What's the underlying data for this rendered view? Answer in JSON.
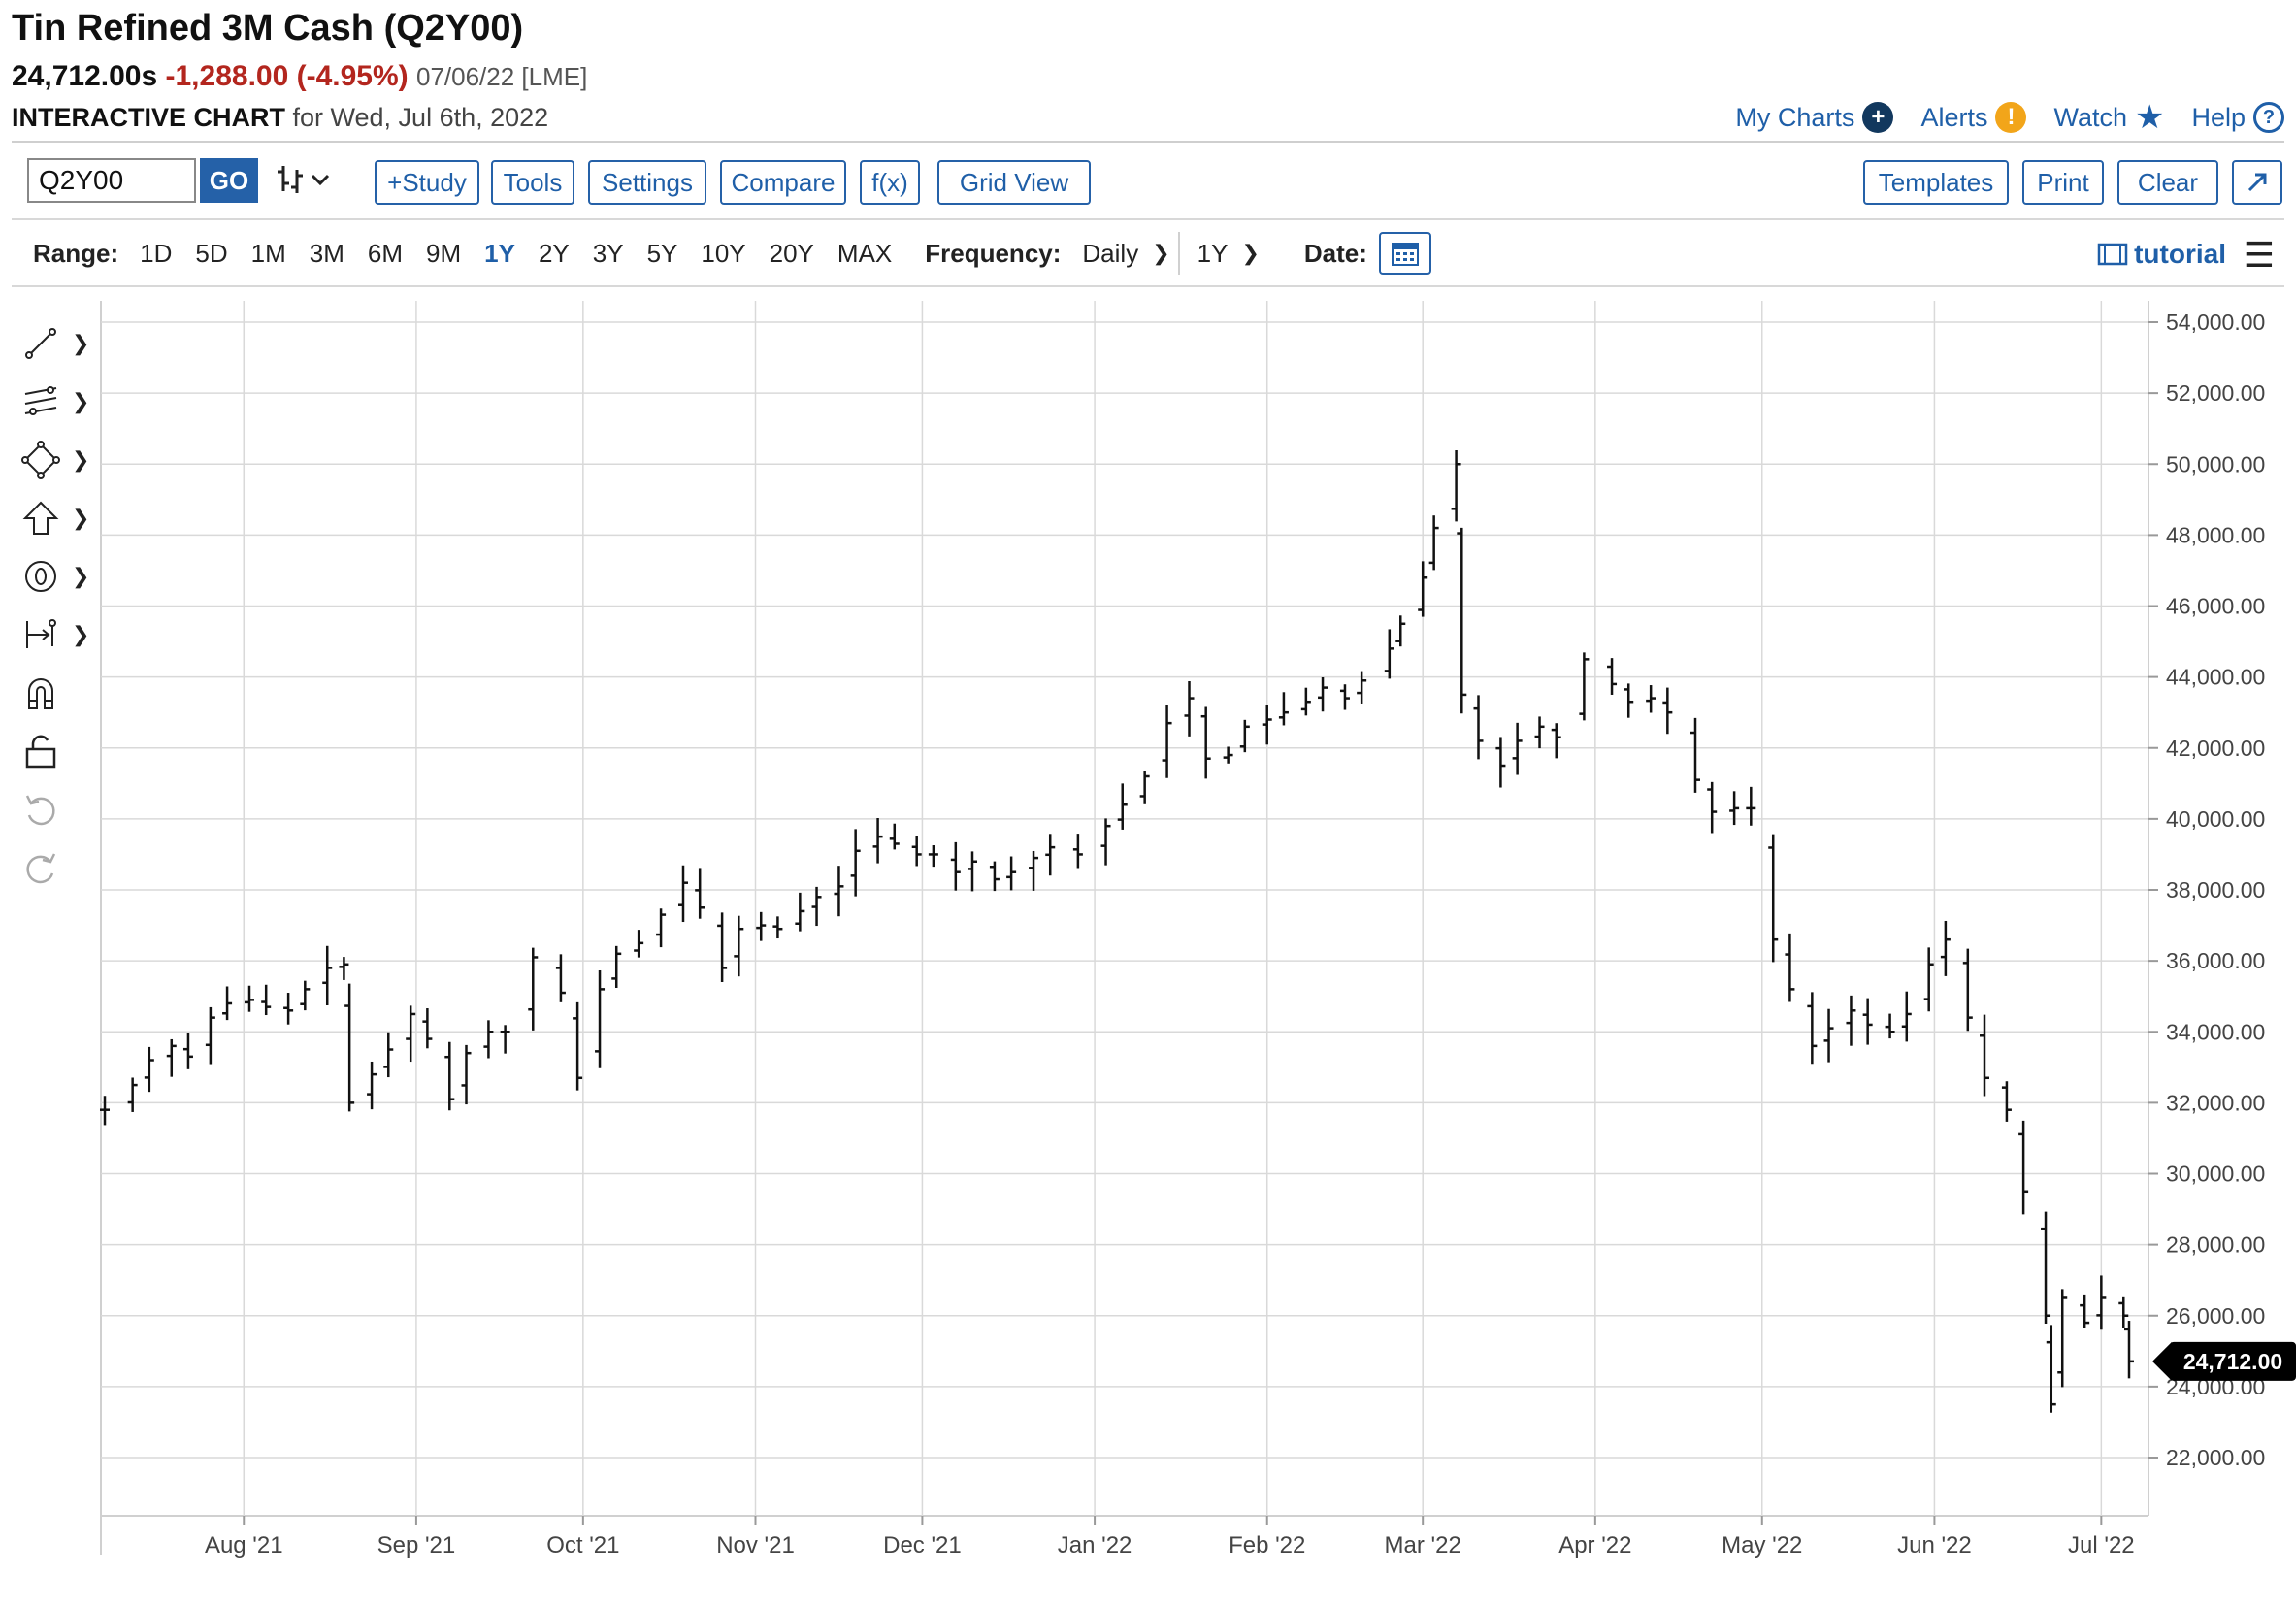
{
  "header": {
    "title": "Tin Refined 3M Cash (Q2Y00)",
    "price": "24,712.00s",
    "change": "-1,288.00 (-4.95%)",
    "date_exchange": "07/06/22 [LME]",
    "chart_label": "INTERACTIVE CHART",
    "chart_for": "for Wed, Jul 6th, 2022"
  },
  "links": {
    "my_charts": "My Charts",
    "alerts": "Alerts",
    "watch": "Watch",
    "help": "Help"
  },
  "toolbar": {
    "symbol_value": "Q2Y00",
    "go": "GO",
    "study": "+Study",
    "tools": "Tools",
    "settings": "Settings",
    "compare": "Compare",
    "fx": "f(x)",
    "grid_view": "Grid View",
    "templates": "Templates",
    "print": "Print",
    "clear": "Clear",
    "expand_icon": "expand-icon"
  },
  "range": {
    "label": "Range:",
    "options": [
      "1D",
      "5D",
      "1M",
      "3M",
      "6M",
      "9M",
      "1Y",
      "2Y",
      "3Y",
      "5Y",
      "10Y",
      "20Y",
      "MAX"
    ],
    "active": "1Y",
    "frequency_label": "Frequency:",
    "frequency_value": "Daily",
    "period_value": "1Y",
    "date_label": "Date:",
    "tutorial": "tutorial"
  },
  "chart_data": {
    "type": "ohlc",
    "title": "Tin Refined 3M Cash (Q2Y00)",
    "ylim": [
      21000,
      54500
    ],
    "yticks": [
      "54,000.00",
      "52,000.00",
      "50,000.00",
      "48,000.00",
      "46,000.00",
      "44,000.00",
      "42,000.00",
      "40,000.00",
      "38,000.00",
      "36,000.00",
      "34,000.00",
      "32,000.00",
      "30,000.00",
      "28,000.00",
      "26,000.00",
      "24,000.00",
      "22,000.00"
    ],
    "x_labels": [
      "Aug '21",
      "Sep '21",
      "Oct '21",
      "Nov '21",
      "Dec '21",
      "Jan '22",
      "Feb '22",
      "Mar '22",
      "Apr '22",
      "May '22",
      "Jun '22",
      "Jul '22"
    ],
    "x_range": [
      "2021-07-07",
      "2022-07-06"
    ],
    "last_value": 24712,
    "last_label": "24,712.00",
    "points": [
      [
        "2021-07-07",
        31800
      ],
      [
        "2021-07-12",
        32500
      ],
      [
        "2021-07-15",
        33200
      ],
      [
        "2021-07-19",
        33600
      ],
      [
        "2021-07-22",
        33300
      ],
      [
        "2021-07-26",
        34400
      ],
      [
        "2021-07-29",
        34800
      ],
      [
        "2021-08-02",
        34900
      ],
      [
        "2021-08-05",
        34700
      ],
      [
        "2021-08-09",
        34600
      ],
      [
        "2021-08-12",
        35200
      ],
      [
        "2021-08-16",
        35800
      ],
      [
        "2021-08-19",
        35900
      ],
      [
        "2021-08-20",
        32000
      ],
      [
        "2021-08-24",
        32800
      ],
      [
        "2021-08-27",
        33500
      ],
      [
        "2021-08-31",
        34500
      ],
      [
        "2021-09-03",
        33800
      ],
      [
        "2021-09-07",
        32100
      ],
      [
        "2021-09-10",
        33400
      ],
      [
        "2021-09-14",
        34000
      ],
      [
        "2021-09-17",
        34000
      ],
      [
        "2021-09-22",
        36100
      ],
      [
        "2021-09-27",
        35100
      ],
      [
        "2021-09-30",
        32700
      ],
      [
        "2021-10-04",
        35200
      ],
      [
        "2021-10-07",
        36200
      ],
      [
        "2021-10-11",
        36500
      ],
      [
        "2021-10-15",
        37300
      ],
      [
        "2021-10-19",
        38200
      ],
      [
        "2021-10-22",
        37500
      ],
      [
        "2021-10-26",
        35800
      ],
      [
        "2021-10-29",
        36900
      ],
      [
        "2021-11-02",
        37000
      ],
      [
        "2021-11-05",
        36900
      ],
      [
        "2021-11-09",
        37400
      ],
      [
        "2021-11-12",
        37800
      ],
      [
        "2021-11-16",
        38100
      ],
      [
        "2021-11-19",
        39100
      ],
      [
        "2021-11-23",
        39500
      ],
      [
        "2021-11-26",
        39300
      ],
      [
        "2021-11-30",
        39000
      ],
      [
        "2021-12-03",
        39000
      ],
      [
        "2021-12-07",
        38500
      ],
      [
        "2021-12-10",
        38800
      ],
      [
        "2021-12-14",
        38300
      ],
      [
        "2021-12-17",
        38500
      ],
      [
        "2021-12-21",
        38900
      ],
      [
        "2021-12-24",
        39200
      ],
      [
        "2021-12-29",
        39000
      ],
      [
        "2022-01-03",
        39800
      ],
      [
        "2022-01-06",
        40400
      ],
      [
        "2022-01-10",
        41200
      ],
      [
        "2022-01-14",
        42700
      ],
      [
        "2022-01-18",
        43400
      ],
      [
        "2022-01-21",
        41700
      ],
      [
        "2022-01-25",
        41800
      ],
      [
        "2022-01-28",
        42600
      ],
      [
        "2022-02-01",
        42800
      ],
      [
        "2022-02-04",
        43000
      ],
      [
        "2022-02-08",
        43300
      ],
      [
        "2022-02-11",
        43700
      ],
      [
        "2022-02-15",
        43400
      ],
      [
        "2022-02-18",
        43900
      ],
      [
        "2022-02-23",
        44800
      ],
      [
        "2022-02-25",
        45500
      ],
      [
        "2022-03-01",
        46800
      ],
      [
        "2022-03-03",
        48200
      ],
      [
        "2022-03-07",
        50000
      ],
      [
        "2022-03-08",
        43500
      ],
      [
        "2022-03-11",
        42200
      ],
      [
        "2022-03-15",
        41500
      ],
      [
        "2022-03-18",
        42200
      ],
      [
        "2022-03-22",
        42600
      ],
      [
        "2022-03-25",
        42300
      ],
      [
        "2022-03-30",
        44500
      ],
      [
        "2022-04-04",
        43800
      ],
      [
        "2022-04-07",
        43300
      ],
      [
        "2022-04-11",
        43400
      ],
      [
        "2022-04-14",
        43000
      ],
      [
        "2022-04-19",
        41100
      ],
      [
        "2022-04-22",
        40200
      ],
      [
        "2022-04-26",
        40300
      ],
      [
        "2022-04-29",
        40300
      ],
      [
        "2022-05-03",
        36600
      ],
      [
        "2022-05-06",
        35200
      ],
      [
        "2022-05-10",
        33600
      ],
      [
        "2022-05-13",
        34100
      ],
      [
        "2022-05-17",
        34600
      ],
      [
        "2022-05-20",
        34200
      ],
      [
        "2022-05-24",
        34000
      ],
      [
        "2022-05-27",
        34500
      ],
      [
        "2022-05-31",
        35900
      ],
      [
        "2022-06-03",
        36600
      ],
      [
        "2022-06-07",
        34400
      ],
      [
        "2022-06-10",
        32700
      ],
      [
        "2022-06-14",
        31800
      ],
      [
        "2022-06-17",
        29500
      ],
      [
        "2022-06-21",
        26000
      ],
      [
        "2022-06-22",
        23500
      ],
      [
        "2022-06-24",
        26500
      ],
      [
        "2022-06-28",
        25800
      ],
      [
        "2022-07-01",
        26500
      ],
      [
        "2022-07-05",
        26000
      ],
      [
        "2022-07-06",
        24712
      ]
    ]
  }
}
